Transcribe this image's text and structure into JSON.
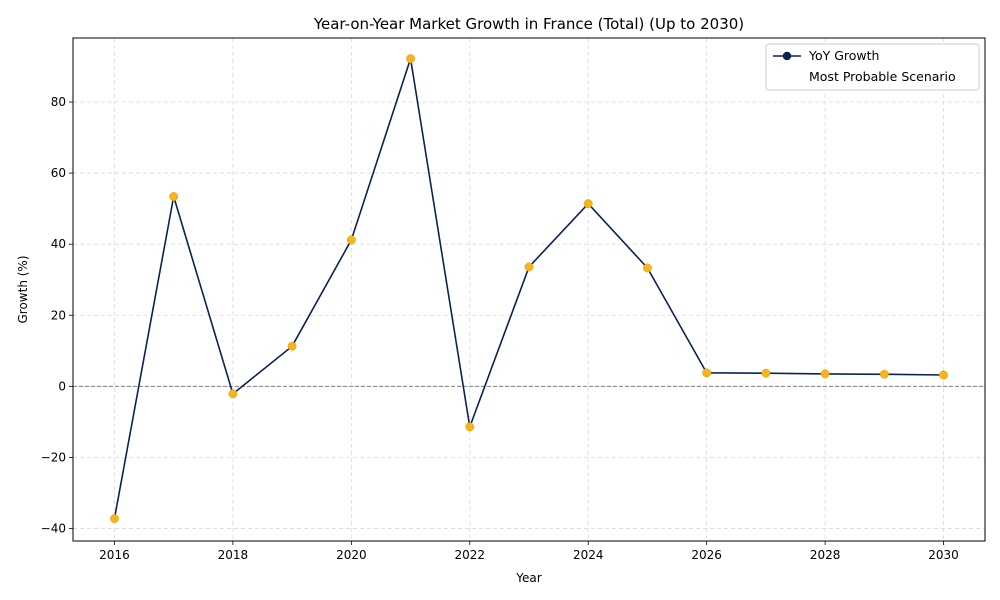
{
  "chart_data": {
    "type": "line",
    "title": "Year-on-Year Market Growth in France (Total) (Up to 2030)",
    "xlabel": "Year",
    "ylabel": "Growth (%)",
    "x": [
      2016,
      2017,
      2018,
      2019,
      2020,
      2021,
      2022,
      2023,
      2024,
      2025,
      2026,
      2027,
      2028,
      2029,
      2030
    ],
    "series": [
      {
        "name": "YoY Growth",
        "values": [
          -37.2,
          53.4,
          -2.1,
          11.3,
          41.2,
          92.2,
          -11.4,
          33.6,
          51.4,
          33.3,
          3.8,
          3.7,
          3.5,
          3.4,
          3.2
        ]
      }
    ],
    "xlim": [
      2015.3,
      2030.7
    ],
    "ylim": [
      -43.5,
      98.0
    ],
    "xticks": [
      2016,
      2018,
      2020,
      2022,
      2024,
      2026,
      2028,
      2030
    ],
    "yticks": [
      -40,
      -20,
      0,
      20,
      40,
      60,
      80
    ],
    "grid": true,
    "zero_line": true,
    "legend": {
      "placement": "top-right",
      "entries": [
        "YoY Growth",
        "Most Probable Scenario"
      ]
    },
    "colors": {
      "line": "#0b2157",
      "marker": "#f5b51c",
      "legend_marker": "#0b2157",
      "grid": "#d9d9d9",
      "zero_line": "#808080"
    }
  }
}
